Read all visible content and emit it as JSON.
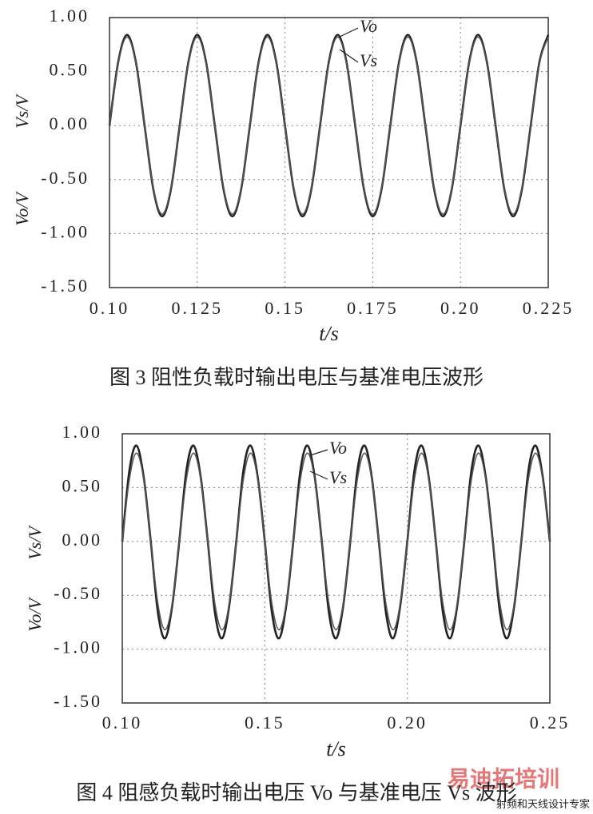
{
  "chart_data": [
    {
      "type": "line",
      "caption": "图 3  阻性负载时输出电压与基准电压波形",
      "xlabel": "t/s",
      "ylabel": [
        "Vs/V",
        "Vo/V"
      ],
      "xlim": [
        0.1,
        0.225
      ],
      "ylim": [
        -1.5,
        1
      ],
      "xticks": [
        {
          "value": 0.1,
          "label": "0.10"
        },
        0.125,
        0.15,
        0.175,
        {
          "value": 0.2,
          "label": "0.20"
        },
        0.225
      ],
      "yticks": [
        {
          "value": 1,
          "label": "1.00"
        },
        {
          "value": 0.5,
          "label": "0.50"
        },
        {
          "value": 0,
          "label": "0.00"
        },
        {
          "value": -0.5,
          "label": "-0.50"
        },
        {
          "value": -1,
          "label": "-1.00"
        },
        {
          "value": -1.5,
          "label": "-1.50"
        }
      ],
      "grid": true,
      "x": [
        0.1,
        0.1025,
        0.105,
        0.1075,
        0.11,
        0.1125,
        0.115,
        0.1175,
        0.12,
        0.1225,
        0.125,
        0.1275,
        0.13,
        0.1325,
        0.135,
        0.1375,
        0.14,
        0.1425,
        0.145,
        0.1475,
        0.15,
        0.1525,
        0.155,
        0.1575,
        0.16,
        0.1625,
        0.165,
        0.1675,
        0.17,
        0.1725,
        0.175,
        0.1775,
        0.18,
        0.1825,
        0.185,
        0.1875,
        0.19,
        0.1925,
        0.195,
        0.1975,
        0.2,
        0.2025,
        0.205,
        0.2075,
        0.21,
        0.2125,
        0.215,
        0.2175,
        0.22,
        0.2225,
        0.225
      ],
      "series": [
        {
          "name": "Vo",
          "color": "#222222",
          "values": [
            0,
            0.59,
            0.84,
            0.59,
            0,
            -0.59,
            -0.84,
            -0.59,
            0,
            0.59,
            0.84,
            0.59,
            0,
            -0.59,
            -0.84,
            -0.59,
            0,
            0.59,
            0.84,
            0.59,
            0,
            -0.59,
            -0.84,
            -0.59,
            0,
            0.59,
            0.84,
            0.59,
            0,
            -0.59,
            -0.84,
            -0.59,
            0,
            0.59,
            0.84,
            0.59,
            0,
            -0.59,
            -0.84,
            -0.59,
            0,
            0.59,
            0.84,
            0.59,
            0,
            -0.59,
            -0.84,
            -0.59,
            0,
            0.59,
            0.84
          ]
        },
        {
          "name": "Vs",
          "color": "#555555",
          "values": [
            0,
            0.58,
            0.82,
            0.58,
            0,
            -0.58,
            -0.82,
            -0.58,
            0,
            0.58,
            0.82,
            0.58,
            0,
            -0.58,
            -0.82,
            -0.58,
            0,
            0.58,
            0.82,
            0.58,
            0,
            -0.58,
            -0.82,
            -0.58,
            0,
            0.58,
            0.82,
            0.58,
            0,
            -0.58,
            -0.82,
            -0.58,
            0,
            0.58,
            0.82,
            0.58,
            0,
            -0.58,
            -0.82,
            -0.58,
            0,
            0.58,
            0.82,
            0.58,
            0,
            -0.58,
            -0.82,
            -0.58,
            0,
            0.58,
            0.82
          ]
        }
      ]
    },
    {
      "type": "line",
      "caption": "图 4  阻感负载时输出电压 Vo 与基准电压 Vs 波形",
      "xlabel": "t/s",
      "ylabel": [
        "Vs/V",
        "Vo/V"
      ],
      "xlim": [
        0.1,
        0.25
      ],
      "ylim": [
        -1.5,
        1
      ],
      "xticks": [
        {
          "value": 0.1,
          "label": "0.10"
        },
        0.15,
        {
          "value": 0.2,
          "label": "0.20"
        },
        0.25
      ],
      "yticks": [
        {
          "value": 1,
          "label": "1.00"
        },
        {
          "value": 0.5,
          "label": "0.50"
        },
        {
          "value": 0,
          "label": "0.00"
        },
        {
          "value": -0.5,
          "label": "-0.50"
        },
        {
          "value": -1,
          "label": "-1.00"
        },
        {
          "value": -1.5,
          "label": "-1.50"
        }
      ],
      "grid": true,
      "x": [
        0.1,
        0.1025,
        0.105,
        0.1075,
        0.11,
        0.1125,
        0.115,
        0.1175,
        0.12,
        0.1225,
        0.125,
        0.1275,
        0.13,
        0.1325,
        0.135,
        0.1375,
        0.14,
        0.1425,
        0.145,
        0.1475,
        0.15,
        0.1525,
        0.155,
        0.1575,
        0.16,
        0.1625,
        0.165,
        0.1675,
        0.17,
        0.1725,
        0.175,
        0.1775,
        0.18,
        0.1825,
        0.185,
        0.1875,
        0.19,
        0.1925,
        0.195,
        0.1975,
        0.2,
        0.2025,
        0.205,
        0.2075,
        0.21,
        0.2125,
        0.215,
        0.2175,
        0.22,
        0.2225,
        0.225,
        0.2275,
        0.23,
        0.2325,
        0.235,
        0.2375,
        0.24,
        0.2425,
        0.245,
        0.2475,
        0.25
      ],
      "series": [
        {
          "name": "Vo",
          "color": "#222222",
          "values": [
            0,
            0.66,
            0.89,
            0.6,
            0,
            -0.66,
            -0.9,
            -0.6,
            0,
            0.66,
            0.89,
            0.6,
            0,
            -0.66,
            -0.9,
            -0.6,
            0,
            0.66,
            0.89,
            0.6,
            0,
            -0.66,
            -0.9,
            -0.6,
            0,
            0.66,
            0.89,
            0.6,
            0,
            -0.66,
            -0.9,
            -0.6,
            0,
            0.66,
            0.89,
            0.6,
            0,
            -0.66,
            -0.9,
            -0.6,
            0,
            0.66,
            0.89,
            0.6,
            0,
            -0.66,
            -0.9,
            -0.6,
            0,
            0.66,
            0.89,
            0.6,
            0,
            -0.66,
            -0.9,
            -0.6,
            0,
            0.66,
            0.89,
            0.6,
            0
          ]
        },
        {
          "name": "Vs",
          "color": "#555555",
          "values": [
            0,
            0.58,
            0.82,
            0.58,
            0,
            -0.58,
            -0.82,
            -0.58,
            0,
            0.58,
            0.82,
            0.58,
            0,
            -0.58,
            -0.82,
            -0.58,
            0,
            0.58,
            0.82,
            0.58,
            0,
            -0.58,
            -0.82,
            -0.58,
            0,
            0.58,
            0.82,
            0.58,
            0,
            -0.58,
            -0.82,
            -0.58,
            0,
            0.58,
            0.82,
            0.58,
            0,
            -0.58,
            -0.82,
            -0.58,
            0,
            0.58,
            0.82,
            0.58,
            0,
            -0.58,
            -0.82,
            -0.58,
            0,
            0.58,
            0.82,
            0.58,
            0,
            -0.58,
            -0.82,
            -0.58,
            0,
            0.58,
            0.82,
            0.58,
            0
          ]
        }
      ]
    }
  ],
  "watermark": {
    "brand": "易迪拓培训",
    "slogan": "射频和天线设计专家"
  }
}
